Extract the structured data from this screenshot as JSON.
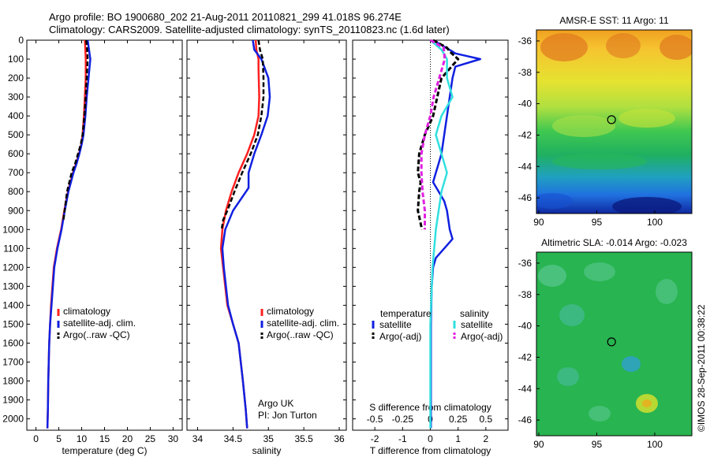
{
  "header": {
    "line1": "Argo profile: BO 1900680_202 21-Aug-2011 20110821_299 41.018S 96.274E",
    "line2": "Climatology: CARS2009. Satellite-adjusted climatology: synTS_20110823.nc (1.6d later)"
  },
  "colors": {
    "climatology": "#ff2020",
    "satellite_clim": "#1020e0",
    "argo": "#000000",
    "sal_satellite": "#30e0e0",
    "sal_argo": "#e020e0"
  },
  "credit": {
    "line1": "Argo UK",
    "line2": "PI: Jon Turton"
  },
  "stamp": "©IMOS 28-Sep-2011 00:38:22",
  "chart_data": [
    {
      "type": "line",
      "xlabel": "temperature (deg C)",
      "ylabel": "",
      "xlim": [
        -2,
        32
      ],
      "ylim": [
        2060,
        0
      ],
      "xticks": [
        0,
        5,
        10,
        15,
        20,
        25,
        30
      ],
      "yticks": [
        0,
        100,
        200,
        300,
        400,
        500,
        600,
        700,
        800,
        900,
        1000,
        1100,
        1200,
        1300,
        1400,
        1500,
        1600,
        1700,
        1800,
        1900,
        2000
      ],
      "series": [
        {
          "name": "climatology",
          "x": [
            10.7,
            10.8,
            10.9,
            10.9,
            10.7,
            10.5,
            10.2,
            9.9,
            9.4,
            8.8,
            8.1,
            7.0,
            6.2,
            5.5,
            4.6,
            3.9,
            3.3,
            3.1,
            2.9,
            2.7,
            2.6,
            2.5
          ],
          "y": [
            0,
            50,
            100,
            200,
            300,
            400,
            500,
            550,
            600,
            650,
            700,
            800,
            900,
            1000,
            1100,
            1200,
            1400,
            1500,
            1600,
            1800,
            1950,
            2050
          ]
        },
        {
          "name": "satellite-adj. clim.",
          "x": [
            11.3,
            11.6,
            11.9,
            11.5,
            11.1,
            10.8,
            10.4,
            10.0,
            9.5,
            8.9,
            8.2,
            7.1,
            6.3,
            5.6,
            4.7,
            4.0,
            3.4,
            3.1,
            2.9,
            2.7,
            2.6,
            2.5
          ],
          "y": [
            0,
            50,
            100,
            200,
            300,
            400,
            500,
            550,
            600,
            650,
            700,
            800,
            900,
            1000,
            1100,
            1200,
            1400,
            1500,
            1600,
            1800,
            1950,
            2050
          ]
        },
        {
          "name": "Argo(..raw -QC)",
          "x": [
            11.0,
            11.2,
            11.3,
            11.1,
            10.9,
            10.6,
            10.2,
            9.8,
            9.2,
            8.6,
            7.8,
            6.8,
            6.0
          ],
          "y": [
            0,
            50,
            100,
            200,
            300,
            400,
            500,
            550,
            600,
            650,
            700,
            800,
            950
          ]
        }
      ],
      "legend": {
        "position": "lower-middle",
        "entries": [
          "climatology",
          "satellite-adj. clim.",
          "Argo(..raw -QC)"
        ]
      }
    },
    {
      "type": "line",
      "xlabel": "salinity",
      "ylabel": "",
      "xlim": [
        33.85,
        36.1
      ],
      "ylim": [
        2060,
        0
      ],
      "xticks": [
        34,
        34.5,
        35,
        35.5,
        36
      ],
      "yticks": [],
      "series": [
        {
          "name": "climatology",
          "x": [
            34.82,
            34.83,
            34.86,
            34.86,
            34.87,
            34.86,
            34.8,
            34.7,
            34.58,
            34.48,
            34.4,
            34.35,
            34.33,
            34.36,
            34.42,
            34.5,
            34.58,
            34.64,
            34.68,
            34.7
          ],
          "y": [
            0,
            50,
            100,
            150,
            300,
            400,
            500,
            600,
            700,
            800,
            900,
            1000,
            1100,
            1200,
            1400,
            1500,
            1600,
            1800,
            1950,
            2050
          ]
        },
        {
          "name": "satellite-adj. clim.",
          "x": [
            34.78,
            34.8,
            34.9,
            35.0,
            35.02,
            34.99,
            34.9,
            34.8,
            34.72,
            34.72,
            34.5,
            34.39,
            34.35,
            34.37,
            34.43,
            34.5,
            34.58,
            34.64,
            34.68,
            34.7
          ],
          "y": [
            0,
            50,
            100,
            200,
            300,
            400,
            500,
            600,
            700,
            780,
            900,
            1000,
            1100,
            1200,
            1400,
            1500,
            1600,
            1800,
            1950,
            2050
          ]
        },
        {
          "name": "Argo(..raw -QC)",
          "x": [
            34.86,
            34.88,
            34.92,
            34.93,
            34.93,
            34.9,
            34.85,
            34.75,
            34.63,
            34.52,
            34.42,
            34.36,
            34.34
          ],
          "y": [
            0,
            50,
            100,
            200,
            300,
            400,
            500,
            600,
            700,
            800,
            900,
            950,
            1000
          ]
        }
      ],
      "legend": {
        "position": "lower-middle",
        "entries": [
          "climatology",
          "satellite-adj. clim.",
          "Argo(..raw -QC)"
        ]
      }
    },
    {
      "type": "line",
      "xlabel": "T difference from climatology",
      "ylabel": "",
      "top_axis_label": "S difference from climatology",
      "xlim": [
        -2.8,
        2.8
      ],
      "ylim": [
        2060,
        0
      ],
      "xticks": [
        -2,
        -1,
        0,
        1,
        2
      ],
      "top_ticks": [
        -0.5,
        -0.25,
        0,
        0.25,
        0.5
      ],
      "yticks": [],
      "series": [
        {
          "name": "temperature satellite",
          "x": [
            0.1,
            0.8,
            0.9,
            1.2,
            1.8,
            0.9,
            0.8,
            0.7,
            0.6,
            0.5,
            0.4,
            0.3,
            0.2,
            0.1,
            0.3,
            0.5,
            0.6,
            0.7,
            0.8,
            0.5,
            0.2,
            0.1,
            0.05,
            0.02,
            0.02
          ],
          "y": [
            0,
            60,
            70,
            80,
            100,
            140,
            200,
            300,
            400,
            500,
            600,
            650,
            700,
            750,
            800,
            850,
            900,
            1000,
            1050,
            1100,
            1150,
            1200,
            1300,
            1500,
            2050
          ]
        },
        {
          "name": "temperature Argo(-adj)",
          "x": [
            0.1,
            0.6,
            0.7,
            1.0,
            0.4,
            0.25,
            0.1,
            -0.2,
            -0.4,
            -0.45,
            -0.35,
            -0.4,
            -0.45,
            -0.3
          ],
          "y": [
            0,
            40,
            60,
            100,
            200,
            300,
            400,
            500,
            600,
            700,
            750,
            800,
            900,
            1000
          ]
        },
        {
          "name": "salinity satellite",
          "x": [
            0.0,
            0.1,
            0.15,
            0.15,
            0.2,
            0.1,
            0.05,
            0.1,
            0.15,
            0.1,
            0.05,
            0.02,
            0.0,
            0.0
          ],
          "y": [
            0,
            50,
            100,
            200,
            300,
            400,
            500,
            600,
            700,
            800,
            1000,
            1200,
            1500,
            2050
          ]
        },
        {
          "name": "salinity Argo(-adj)",
          "x": [
            0.0,
            0.12,
            0.13,
            0.08,
            0.03,
            0.0,
            -0.05,
            -0.08,
            -0.08,
            -0.07,
            -0.05,
            -0.05
          ],
          "y": [
            0,
            40,
            100,
            200,
            300,
            400,
            500,
            600,
            700,
            800,
            900,
            1000
          ]
        }
      ],
      "legend": {
        "position": "lower-middle",
        "headers": [
          "temperature",
          "salinity"
        ],
        "entries": [
          "satellite",
          "Argo(-adj)",
          "satellite",
          "Argo(-adj)"
        ]
      }
    },
    {
      "type": "heatmap",
      "title": "AMSR-E SST: 11 Argo: 11",
      "xlim": [
        89.8,
        103.2
      ],
      "ylim": [
        -47.0,
        -35.3
      ],
      "xticks": [
        90,
        95,
        100
      ],
      "yticks": [
        -36,
        -38,
        -40,
        -42,
        -44,
        -46
      ],
      "marker": {
        "lon": 96.274,
        "lat": -41.018
      }
    },
    {
      "type": "heatmap",
      "title": "Altimetric SLA: -0.014 Argo: -0.023",
      "xlim": [
        89.8,
        103.2
      ],
      "ylim": [
        -47.0,
        -35.3
      ],
      "xticks": [
        90,
        95,
        100
      ],
      "yticks": [
        -36,
        -38,
        -40,
        -42,
        -44,
        -46
      ],
      "marker": {
        "lon": 96.274,
        "lat": -41.018
      }
    }
  ]
}
